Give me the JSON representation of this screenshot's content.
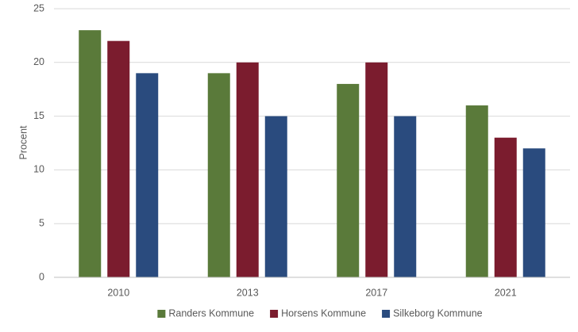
{
  "chart_data": {
    "type": "bar",
    "y_label": "Procent",
    "categories": [
      "2010",
      "2013",
      "2017",
      "2021"
    ],
    "series": [
      {
        "name": "Randers Kommune",
        "color": "#5a7a3a",
        "values": [
          23,
          19,
          18,
          16
        ]
      },
      {
        "name": "Horsens Kommune",
        "color": "#7b1c2e",
        "values": [
          22,
          20,
          20,
          13
        ]
      },
      {
        "name": "Silkeborg Kommune",
        "color": "#2a4b7e",
        "values": [
          19,
          15,
          15,
          12
        ]
      }
    ],
    "ylim": [
      0,
      25
    ],
    "yticks": [
      0,
      5,
      10,
      15,
      20,
      25
    ],
    "grid": true,
    "legend": "bottom"
  }
}
